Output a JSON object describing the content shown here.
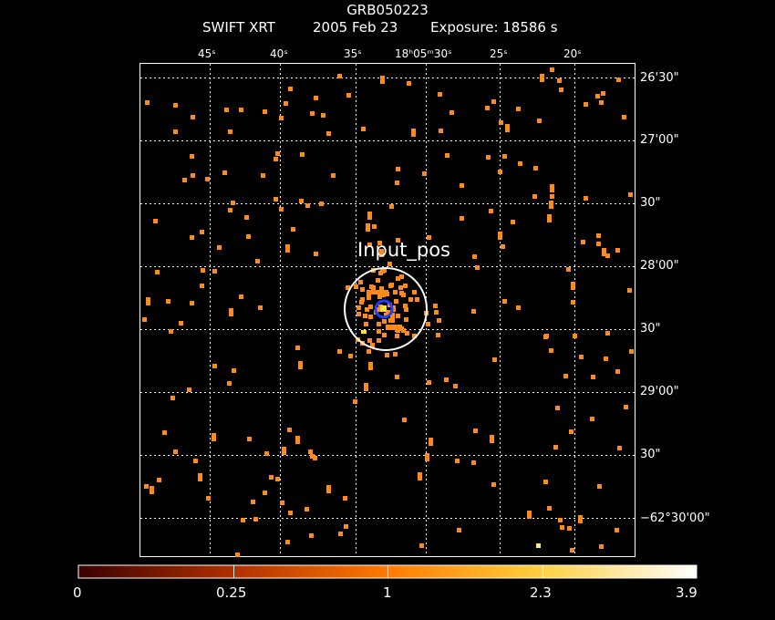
{
  "header": {
    "grb_name": "GRB050223",
    "instrument": "SWIFT XRT",
    "date": "2005 Feb 23",
    "exposure": "Exposure: 18586 s"
  },
  "axes": {
    "ra_ticks": [
      "45ˢ",
      "40ˢ",
      "35ˢ",
      "18ʰ05ᵐ30ˢ",
      "25ˢ",
      "20ˢ"
    ],
    "dec_ticks": [
      "26'30\"",
      "27'00\"",
      "30\"",
      "28'00\"",
      "30\"",
      "29'00\"",
      "30\"",
      "−62°30'00\""
    ]
  },
  "source_label": "Input_pos",
  "colorbar": {
    "ticks": [
      "0",
      "0.25",
      "1",
      "2.3",
      "3.9"
    ]
  },
  "colors": {
    "background": "#000000",
    "counts": "#ff8a1c",
    "bright": "#ffe040",
    "grid": "#ffffff",
    "marker_blue": "#2040ff"
  }
}
